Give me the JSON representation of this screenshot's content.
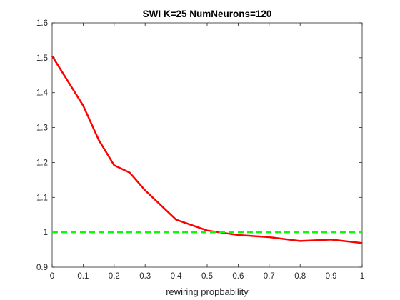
{
  "chart_data": {
    "type": "line",
    "title": "SWI K=25 NumNeurons=120",
    "xlabel": "rewiring propbability",
    "ylabel": "",
    "xlim": [
      0,
      1
    ],
    "ylim": [
      0.9,
      1.6
    ],
    "xticks": [
      "0",
      "0.1",
      "0.2",
      "0.3",
      "0.4",
      "0.5",
      "0.6",
      "0.7",
      "0.8",
      "0.9",
      "1"
    ],
    "yticks": [
      "0.9",
      "1",
      "1.1",
      "1.2",
      "1.3",
      "1.4",
      "1.5",
      "1.6"
    ],
    "grid": false,
    "series": [
      {
        "color": "#ff0000",
        "style": "solid",
        "x": [
          0,
          0.1,
          0.15,
          0.2,
          0.25,
          0.3,
          0.4,
          0.5,
          0.6,
          0.7,
          0.8,
          0.9,
          1.0
        ],
        "y": [
          1.505,
          1.363,
          1.265,
          1.192,
          1.171,
          1.12,
          1.036,
          1.005,
          0.992,
          0.986,
          0.975,
          0.979,
          0.969
        ]
      },
      {
        "color": "#00ff00",
        "style": "dashed",
        "x": [
          0,
          1
        ],
        "y": [
          1.0,
          1.0
        ]
      }
    ]
  }
}
